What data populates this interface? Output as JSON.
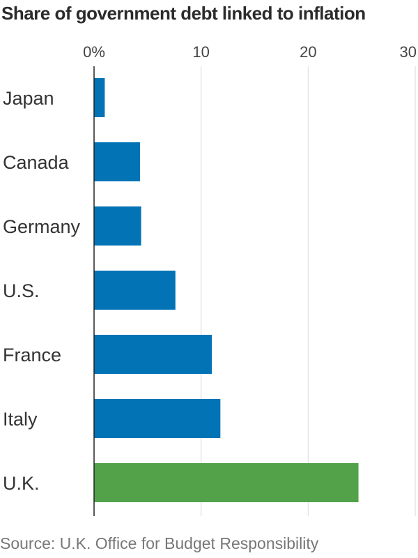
{
  "chart_data": {
    "type": "bar",
    "orientation": "horizontal",
    "title": "Share of government debt linked to inflation",
    "source": "Source: U.K. Office for Budget Responsibility",
    "categories": [
      "Japan",
      "Canada",
      "Germany",
      "U.S.",
      "France",
      "Italy",
      "U.K."
    ],
    "values": [
      1.0,
      4.3,
      4.4,
      7.6,
      11.0,
      11.8,
      24.7
    ],
    "xlim": [
      0,
      30
    ],
    "xticks": [
      0,
      10,
      20,
      30
    ],
    "xtick_labels": [
      "0%",
      "10",
      "20",
      "30"
    ],
    "tick_position": "top",
    "grid": true,
    "colors": {
      "default": "#0274b6",
      "highlight": "#53a24a",
      "grid": "#d9d9d9",
      "axis": "#222222"
    },
    "highlight_category": "U.K."
  }
}
